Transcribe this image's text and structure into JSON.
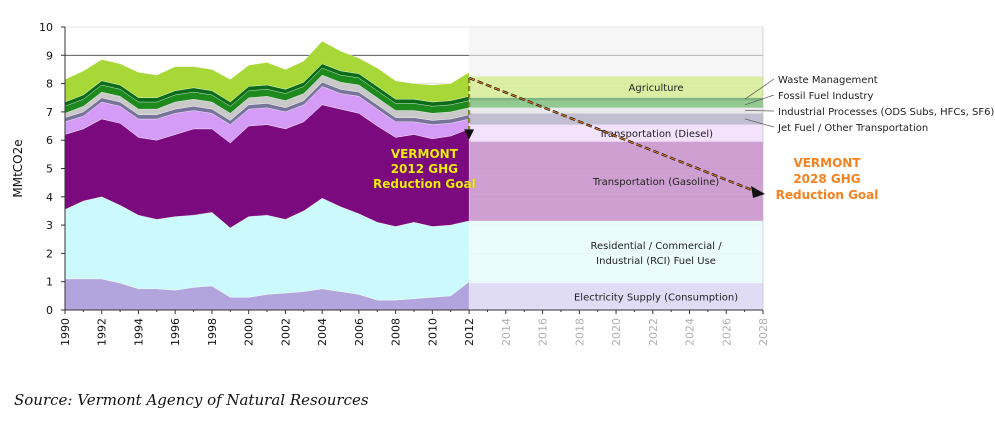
{
  "chart_data": {
    "type": "area",
    "ylabel": "MMtCO2e",
    "ylim": [
      0,
      10
    ],
    "y_ticks": [
      "0",
      "1",
      "2",
      "3",
      "4",
      "5",
      "6",
      "7",
      "8",
      "9",
      "10"
    ],
    "x_range": [
      1990,
      2028
    ],
    "x_ticks": [
      "1990",
      "1992",
      "1994",
      "1996",
      "1998",
      "2000",
      "2002",
      "2004",
      "2006",
      "2008",
      "2010",
      "2012",
      "2014",
      "2016",
      "2018",
      "2020",
      "2022",
      "2024",
      "2026",
      "2028"
    ],
    "years": [
      1990,
      1991,
      1992,
      1993,
      1994,
      1995,
      1996,
      1997,
      1998,
      1999,
      2000,
      2001,
      2002,
      2003,
      2004,
      2005,
      2006,
      2007,
      2008,
      2009,
      2010,
      2011,
      2012
    ],
    "series": [
      {
        "name": "Electricity Supply (Consumption)",
        "color": "#b2a4dc",
        "values": [
          1.1,
          1.1,
          1.1,
          0.95,
          0.75,
          0.75,
          0.7,
          0.8,
          0.85,
          0.45,
          0.45,
          0.55,
          0.6,
          0.65,
          0.75,
          0.65,
          0.55,
          0.35,
          0.35,
          0.4,
          0.45,
          0.5,
          1.0
        ]
      },
      {
        "name": "Residential / Commercial / Industrial (RCI) Fuel Use",
        "color": "#ccf9fb",
        "values": [
          2.45,
          2.75,
          2.9,
          2.75,
          2.6,
          2.45,
          2.6,
          2.55,
          2.6,
          2.45,
          2.85,
          2.8,
          2.6,
          2.85,
          3.2,
          3.0,
          2.85,
          2.75,
          2.6,
          2.7,
          2.5,
          2.5,
          2.15
        ]
      },
      {
        "name": "Transportation (Gasoline)",
        "color": "#7b0a7f",
        "values": [
          2.65,
          2.55,
          2.75,
          2.9,
          2.75,
          2.8,
          2.9,
          3.05,
          2.95,
          3.0,
          3.2,
          3.2,
          3.2,
          3.15,
          3.3,
          3.45,
          3.55,
          3.4,
          3.15,
          3.1,
          3.1,
          3.15,
          3.25
        ]
      },
      {
        "name": "Transportation (Diesel)",
        "color": "#d49cf6",
        "values": [
          0.45,
          0.45,
          0.6,
          0.6,
          0.65,
          0.75,
          0.75,
          0.65,
          0.55,
          0.65,
          0.6,
          0.6,
          0.6,
          0.6,
          0.65,
          0.55,
          0.6,
          0.6,
          0.55,
          0.45,
          0.5,
          0.45,
          0.35
        ]
      },
      {
        "name": "Jet Fuel / Other Transportation",
        "color": "#77739a",
        "values": [
          0.15,
          0.15,
          0.15,
          0.15,
          0.15,
          0.15,
          0.15,
          0.15,
          0.15,
          0.15,
          0.15,
          0.15,
          0.15,
          0.15,
          0.15,
          0.15,
          0.15,
          0.15,
          0.15,
          0.15,
          0.15,
          0.15,
          0.15
        ]
      },
      {
        "name": "Industrial Processes (ODS Subs, HFCs, SF6)",
        "color": "#c9c9c9",
        "values": [
          0.15,
          0.2,
          0.2,
          0.2,
          0.2,
          0.2,
          0.25,
          0.25,
          0.25,
          0.25,
          0.25,
          0.25,
          0.25,
          0.25,
          0.25,
          0.25,
          0.25,
          0.25,
          0.25,
          0.25,
          0.25,
          0.25,
          0.25
        ]
      },
      {
        "name": "Fossil Fuel Industry",
        "color": "#1e8a1e",
        "values": [
          0.25,
          0.25,
          0.25,
          0.25,
          0.25,
          0.25,
          0.25,
          0.25,
          0.25,
          0.25,
          0.25,
          0.25,
          0.25,
          0.25,
          0.25,
          0.25,
          0.25,
          0.25,
          0.25,
          0.25,
          0.25,
          0.25,
          0.25
        ]
      },
      {
        "name": "Waste Management",
        "color": "#0a6b18",
        "values": [
          0.15,
          0.15,
          0.15,
          0.15,
          0.15,
          0.15,
          0.15,
          0.15,
          0.15,
          0.15,
          0.15,
          0.15,
          0.15,
          0.15,
          0.15,
          0.15,
          0.15,
          0.15,
          0.15,
          0.15,
          0.15,
          0.15,
          0.15
        ]
      },
      {
        "name": "Agriculture",
        "color": "#a8d838",
        "values": [
          0.8,
          0.85,
          0.75,
          0.75,
          0.9,
          0.8,
          0.85,
          0.75,
          0.75,
          0.8,
          0.75,
          0.8,
          0.7,
          0.75,
          0.8,
          0.7,
          0.55,
          0.65,
          0.65,
          0.55,
          0.6,
          0.6,
          0.85
        ]
      }
    ],
    "projection_bands": [
      {
        "label": "Electricity Supply (Consumption)",
        "from": 0,
        "to": 0.95,
        "color": "#dcd6f5"
      },
      {
        "label": "Residential / Commercial /\nIndustrial (RCI) Fuel Use",
        "from": 0.95,
        "to": 3.15,
        "color": "#e8fcfd"
      },
      {
        "label": "Transportation (Gasoline)",
        "from": 3.15,
        "to": 5.95,
        "color": "#c58fc9"
      },
      {
        "label": "Transportation (Diesel)",
        "from": 5.95,
        "to": 6.55,
        "color": "#f0ddfb"
      },
      {
        "label": "",
        "from": 6.55,
        "to": 6.95,
        "color": "#b6b4c9"
      },
      {
        "label": "",
        "from": 6.95,
        "to": 7.15,
        "color": "#e6e6e6"
      },
      {
        "label": "",
        "from": 7.15,
        "to": 7.4,
        "color": "#7fbf7f"
      },
      {
        "label": "",
        "from": 7.4,
        "to": 7.5,
        "color": "#6aa66a"
      },
      {
        "label": "Agriculture",
        "from": 7.5,
        "to": 8.25,
        "color": "#d3ec93"
      }
    ],
    "legend_callouts": [
      "Waste Management",
      "Fossil Fuel Industry",
      "Industrial Processes (ODS Subs, HFCs, SF6)",
      "Jet Fuel / Other Transportation"
    ],
    "goal_2012": {
      "text": [
        "VERMONT",
        "2012 GHG",
        "Reduction Goal"
      ],
      "year": 2012,
      "from": 8.2,
      "to": 6.1,
      "color": "#f2f200"
    },
    "goal_2028": {
      "text": [
        "VERMONT",
        "2028 GHG",
        "Reduction Goal"
      ],
      "from_year": 2012,
      "to_year": 2028,
      "from": 8.2,
      "to": 4.1,
      "color": "#f58220"
    },
    "projection_end_year": 2028,
    "projection_top": 10
  },
  "source_text": "Source: Vermont Agency of Natural Resources"
}
